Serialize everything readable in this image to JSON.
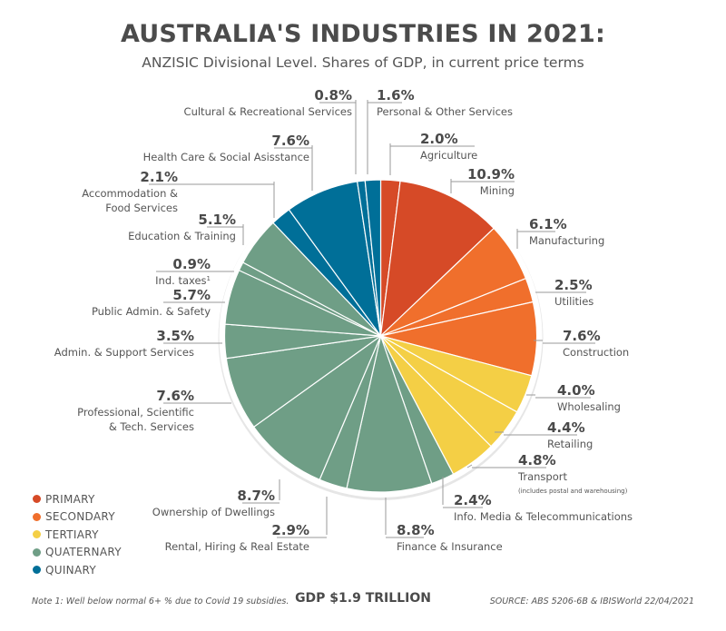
{
  "chart_data": {
    "type": "pie",
    "title": "AUSTRALIA'S INDUSTRIES IN 2021:",
    "subtitle": "ANZISIC Divisional Level.  Shares of GDP, in current price terms",
    "start": "12 o'clock",
    "direction": "clockwise",
    "unit": "%",
    "categories_legend": [
      {
        "name": "PRIMARY",
        "color": "#d64a27"
      },
      {
        "name": "SECONDARY",
        "color": "#f06f2c"
      },
      {
        "name": "TERTIARY",
        "color": "#f4cf45"
      },
      {
        "name": "QUATERNARY",
        "color": "#6f9e86"
      },
      {
        "name": "QUINARY",
        "color": "#006f98"
      }
    ],
    "slices": [
      {
        "label": "Agriculture",
        "value": 2.0,
        "display": "2.0%",
        "group": "PRIMARY"
      },
      {
        "label": "Mining",
        "value": 10.9,
        "display": "10.9%",
        "group": "PRIMARY"
      },
      {
        "label": "Manufacturing",
        "value": 6.1,
        "display": "6.1%",
        "group": "SECONDARY"
      },
      {
        "label": "Utilities",
        "value": 2.5,
        "display": "2.5%",
        "group": "SECONDARY"
      },
      {
        "label": "Construction",
        "value": 7.6,
        "display": "7.6%",
        "group": "SECONDARY"
      },
      {
        "label": "Wholesaling",
        "value": 4.0,
        "display": "4.0%",
        "group": "TERTIARY"
      },
      {
        "label": "Retailing",
        "value": 4.4,
        "display": "4.4%",
        "group": "TERTIARY"
      },
      {
        "label": "Transport",
        "value": 4.8,
        "display": "4.8%",
        "group": "TERTIARY",
        "note": "(includes postal and warehousing)"
      },
      {
        "label": "Info. Media & Telecommunications",
        "value": 2.4,
        "display": "2.4%",
        "group": "QUATERNARY"
      },
      {
        "label": "Finance & Insurance",
        "value": 8.8,
        "display": "8.8%",
        "group": "QUATERNARY"
      },
      {
        "label": "Rental, Hiring & Real Estate",
        "value": 2.9,
        "display": "2.9%",
        "group": "QUATERNARY"
      },
      {
        "label": "Ownership of Dwellings",
        "value": 8.7,
        "display": "8.7%",
        "group": "QUATERNARY"
      },
      {
        "label": "Professional, Scientific & Tech. Services",
        "lines": [
          "Professional, Scientific",
          "& Tech. Services"
        ],
        "value": 7.6,
        "display": "7.6%",
        "group": "QUATERNARY"
      },
      {
        "label": "Admin. & Support Services",
        "value": 3.5,
        "display": "3.5%",
        "group": "QUATERNARY"
      },
      {
        "label": "Public Admin. & Safety",
        "value": 5.7,
        "display": "5.7%",
        "group": "QUATERNARY"
      },
      {
        "label": "Ind. taxes",
        "sup": "1",
        "value": 0.9,
        "display": "0.9%",
        "group": "QUATERNARY"
      },
      {
        "label": "Education & Training",
        "value": 5.1,
        "display": "5.1%",
        "group": "QUATERNARY"
      },
      {
        "label": "Accommodation & Food Services",
        "lines": [
          "Accommodation &",
          "Food Services"
        ],
        "value": 2.1,
        "display": "2.1%",
        "group": "QUINARY"
      },
      {
        "label": "Health Care & Social Asisstance",
        "value": 7.6,
        "display": "7.6%",
        "group": "QUINARY"
      },
      {
        "label": "Cultural & Recreational Services",
        "value": 0.8,
        "display": "0.8%",
        "group": "QUINARY"
      },
      {
        "label": "Personal & Other Services",
        "value": 1.6,
        "display": "1.6%",
        "group": "QUINARY"
      }
    ],
    "total_label": "GDP $1.9 TRILLION"
  },
  "footer": {
    "note": "Note 1: Well below normal 6+ % due to Covid 19 subsidies.",
    "gdp": "GDP $1.9 TRILLION",
    "source": "SOURCE: ABS 5206-6B & IBISWorld 22/04/2021"
  }
}
